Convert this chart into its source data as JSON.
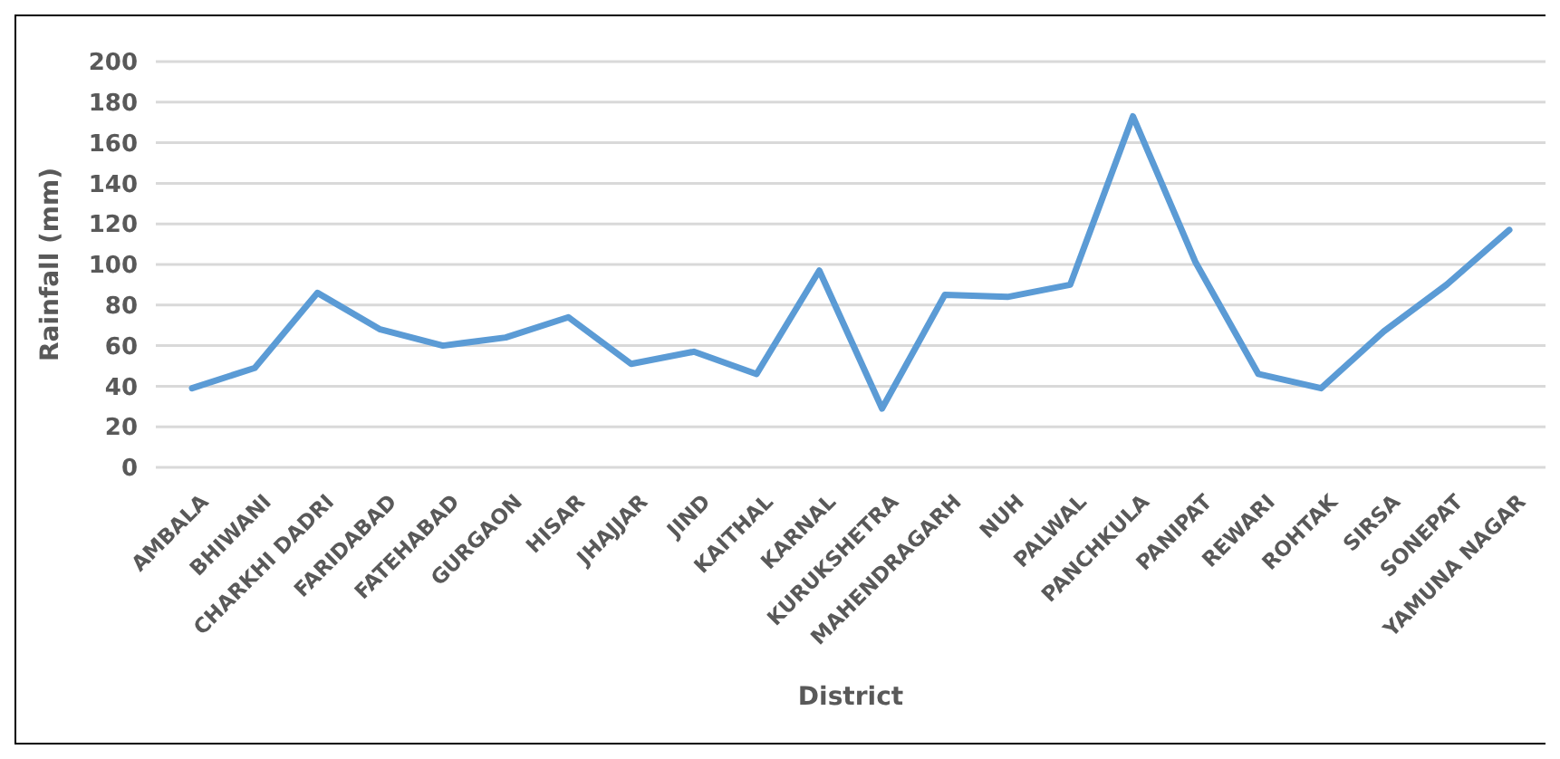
{
  "chart_data": {
    "type": "line",
    "xlabel": "District",
    "ylabel": "Rainfall (mm)",
    "categories": [
      "AMBALA",
      "BHIWANI",
      "CHARKHI DADRI",
      "FARIDABAD",
      "FATEHABAD",
      "GURGAON",
      "HISAR",
      "JHAJJAR",
      "JIND",
      "KAITHAL",
      "KARNAL",
      "KURUKSHETRA",
      "MAHENDRAGARH",
      "NUH",
      "PALWAL",
      "PANCHKULA",
      "PANIPAT",
      "REWARI",
      "ROHTAK",
      "SIRSA",
      "SONEPAT",
      "YAMUNA NAGAR"
    ],
    "series": [
      {
        "color": "#5b9bd5",
        "values": [
          39,
          49,
          86,
          68,
          60,
          64,
          74,
          51,
          57,
          46,
          97,
          29,
          85,
          84,
          90,
          173,
          101,
          46,
          39,
          67,
          90,
          117
        ]
      }
    ],
    "ylim": [
      0,
      200
    ],
    "yticks": [
      0,
      20,
      40,
      60,
      80,
      100,
      120,
      140,
      160,
      180,
      200
    ],
    "grid": "y",
    "marker": "none",
    "line_style": "solid"
  }
}
